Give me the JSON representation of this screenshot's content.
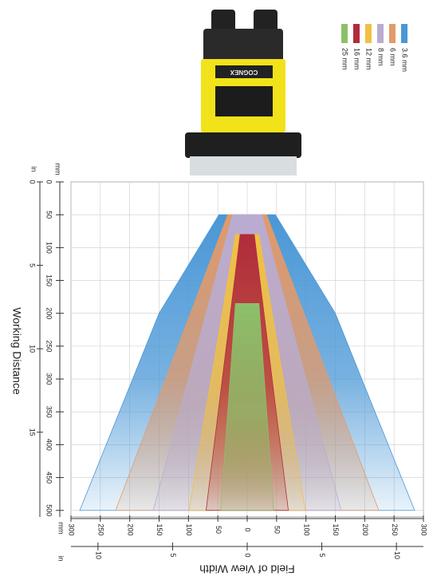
{
  "chart_data": {
    "type": "fov",
    "x_label": "Field of View Width",
    "y_label": "Working Distance",
    "y_unit": "mm",
    "y2_unit": "in",
    "x_unit": "mm",
    "x2_unit": "in",
    "brand": "COGNEX",
    "xlim": [
      -300,
      300
    ],
    "xticks": [
      {
        "value": -300,
        "label": "300"
      },
      {
        "value": -250,
        "label": "250"
      },
      {
        "value": -200,
        "label": "200"
      },
      {
        "value": -150,
        "label": "150"
      },
      {
        "value": -100,
        "label": "100"
      },
      {
        "value": -50,
        "label": "50"
      },
      0,
      50,
      100,
      150,
      200,
      250,
      300
    ],
    "x2lim": [
      -11.81,
      11.81
    ],
    "x2ticks": [
      {
        "value": -10,
        "label": "10"
      },
      {
        "value": -5,
        "label": "5"
      },
      0,
      5,
      10
    ],
    "ylim": [
      0,
      510
    ],
    "yticks": [
      0,
      50,
      100,
      150,
      200,
      250,
      300,
      350,
      400,
      450,
      500
    ],
    "y2lim": [
      0,
      20.08
    ],
    "y2ticks": [
      0,
      5,
      10,
      15
    ],
    "grid": true,
    "series": [
      {
        "name": "3.6 mm",
        "color": "#4a97d6",
        "x": [
          50,
          200,
          500
        ],
        "values": [
          48,
          150,
          285
        ]
      },
      {
        "name": "6 mm",
        "color": "#e29a6a",
        "x": [
          50,
          500
        ],
        "values": [
          33,
          224
        ]
      },
      {
        "name": "8 mm",
        "color": "#b9acd2",
        "x": [
          50,
          500
        ],
        "values": [
          25,
          160
        ]
      },
      {
        "name": "12 mm",
        "color": "#f0c040",
        "x": [
          80,
          500
        ],
        "values": [
          20,
          99
        ]
      },
      {
        "name": "16 mm",
        "color": "#b02c3c",
        "x": [
          80,
          500
        ],
        "values": [
          12,
          70
        ]
      },
      {
        "name": "25 mm",
        "color": "#8cc06a",
        "x": [
          185,
          500
        ],
        "values": [
          20,
          45
        ]
      }
    ]
  }
}
